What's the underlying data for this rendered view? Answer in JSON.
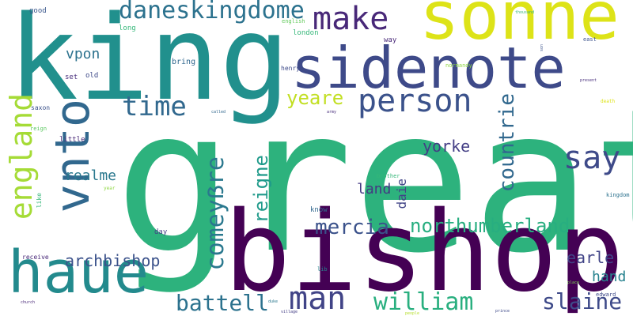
{
  "words": [
    {
      "text": "great",
      "color": "#2db27d"
    },
    {
      "text": "king",
      "color": "#21908d"
    },
    {
      "text": "bishop",
      "color": "#440154"
    },
    {
      "text": "sonne",
      "color": "#dde318"
    },
    {
      "text": "sidenote",
      "color": "#3e4a89"
    },
    {
      "text": "vnto",
      "color": "#31688e"
    },
    {
      "text": "haue",
      "color": "#238a8d"
    },
    {
      "text": "person",
      "color": "#3b528b"
    },
    {
      "text": "england",
      "color": "#a5db36"
    },
    {
      "text": "make",
      "color": "#482878"
    },
    {
      "text": "daneskingdome",
      "color": "#2c728e"
    },
    {
      "text": "time",
      "color": "#31688e"
    },
    {
      "text": "say",
      "color": "#3e4a89"
    },
    {
      "text": "man",
      "color": "#414487"
    },
    {
      "text": "william",
      "color": "#29af7f"
    },
    {
      "text": "northumberland",
      "color": "#28ae80"
    },
    {
      "text": "countrie",
      "color": "#31688e"
    },
    {
      "text": "reigne",
      "color": "#1f9a8a"
    },
    {
      "text": "yeare",
      "color": "#c2df23"
    },
    {
      "text": "comeyẞre",
      "color": "#2a788e"
    },
    {
      "text": "battell",
      "color": "#2c728e"
    },
    {
      "text": "mercia",
      "color": "#3b528b"
    },
    {
      "text": "slaine",
      "color": "#3e4a89"
    },
    {
      "text": "archbishop",
      "color": "#3b528b"
    },
    {
      "text": "vpon",
      "color": "#2c728e"
    },
    {
      "text": "earle",
      "color": "#414487"
    },
    {
      "text": "yorke",
      "color": "#433e85"
    },
    {
      "text": "realme",
      "color": "#2a788e"
    },
    {
      "text": "hand",
      "color": "#26828e"
    },
    {
      "text": "land",
      "color": "#443983"
    },
    {
      "text": "daie",
      "color": "#414487"
    },
    {
      "text": "good",
      "color": "#39568c"
    },
    {
      "text": "long",
      "color": "#35b779"
    },
    {
      "text": "bring",
      "color": "#31688e"
    },
    {
      "text": "english",
      "color": "#65cb5e"
    },
    {
      "text": "london",
      "color": "#35b779"
    },
    {
      "text": "way",
      "color": "#482878"
    },
    {
      "text": "henry",
      "color": "#3e4a89"
    },
    {
      "text": "normandy",
      "color": "#8fd744"
    },
    {
      "text": "old",
      "color": "#3e4a89"
    },
    {
      "text": "set",
      "color": "#472d7b"
    },
    {
      "text": "saxon",
      "color": "#3b528b"
    },
    {
      "text": "reign",
      "color": "#5ec962"
    },
    {
      "text": "little",
      "color": "#482878"
    },
    {
      "text": "like",
      "color": "#35b779"
    },
    {
      "text": "day",
      "color": "#433e85"
    },
    {
      "text": "know",
      "color": "#31688e"
    },
    {
      "text": "brother",
      "color": "#35b779"
    },
    {
      "text": "receive",
      "color": "#482878"
    },
    {
      "text": "east",
      "color": "#3b528b"
    },
    {
      "text": "kingdom",
      "color": "#2c728e"
    },
    {
      "text": "edward",
      "color": "#3e4a89"
    },
    {
      "text": "lib",
      "color": "#25858e"
    },
    {
      "text": "church",
      "color": "#482878"
    },
    {
      "text": "place",
      "color": "#7ad151"
    },
    {
      "text": "death",
      "color": "#dde318"
    },
    {
      "text": "present",
      "color": "#472d7b"
    },
    {
      "text": "thousand",
      "color": "#35b779"
    },
    {
      "text": "son",
      "color": "#3b528b"
    },
    {
      "text": "year",
      "color": "#8fd744"
    },
    {
      "text": "prince",
      "color": "#3e4a89"
    },
    {
      "text": "village",
      "color": "#433e85"
    },
    {
      "text": "duke",
      "color": "#2a788e"
    },
    {
      "text": "called",
      "color": "#31688e"
    },
    {
      "text": "army",
      "color": "#472d7b"
    },
    {
      "text": "people",
      "color": "#b5de2b"
    }
  ]
}
